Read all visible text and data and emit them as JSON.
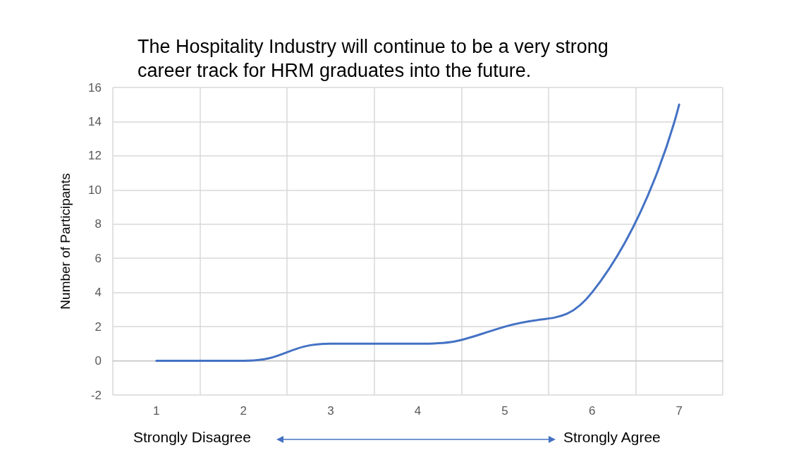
{
  "chart_data": {
    "type": "line",
    "title": "The Hospitality Industry will continue to be a very strong\ncareer track for HRM graduates into the future.",
    "ylabel": "Number of Participants",
    "categories": [
      "1",
      "2",
      "3",
      "4",
      "5",
      "6",
      "7"
    ],
    "series": [
      {
        "color": "#4472c4",
        "values": [
          0,
          0,
          1,
          1,
          2,
          4,
          15
        ]
      }
    ],
    "ylim": [
      -2,
      16
    ],
    "yticks": [
      -2,
      0,
      2,
      4,
      6,
      8,
      10,
      12,
      14,
      16
    ],
    "grid": true,
    "marker": "none",
    "line_style": "solid",
    "annotations": [
      "Strongly Disagree",
      "Strongly Agree"
    ]
  }
}
